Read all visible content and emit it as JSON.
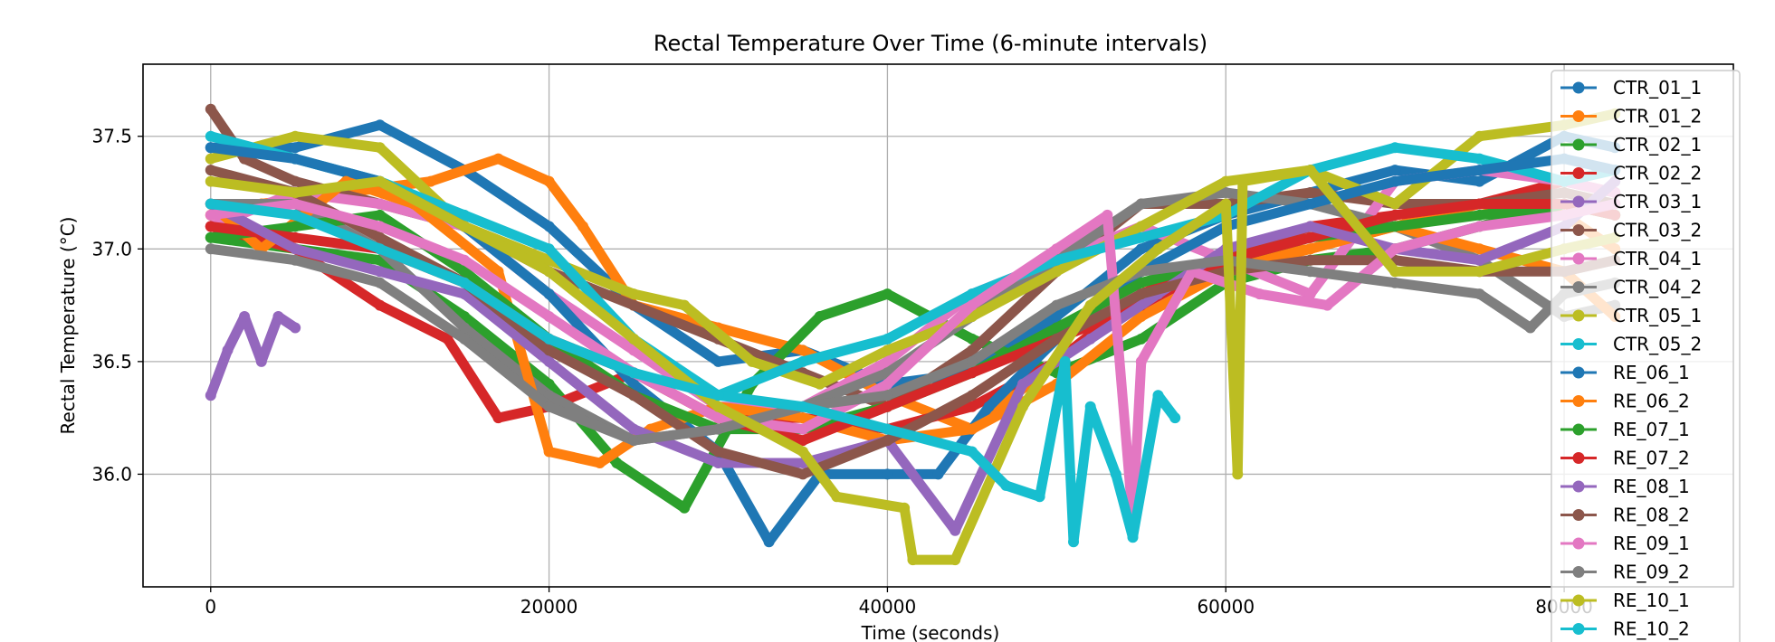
{
  "chart_data": {
    "type": "line",
    "title": "Rectal Temperature Over Time (6-minute intervals)",
    "xlabel": "Time (seconds)",
    "ylabel": "Rectal Temperature (°C)",
    "xlim": [
      -4000,
      90000
    ],
    "ylim": [
      35.5,
      37.82
    ],
    "x_ticks": [
      0,
      20000,
      40000,
      60000,
      80000
    ],
    "y_ticks": [
      36.0,
      36.5,
      37.0,
      37.5
    ],
    "y_tick_labels": [
      "36.0",
      "36.5",
      "37.0",
      "37.5"
    ],
    "grid": true,
    "legend_position": "upper-right",
    "series": [
      {
        "name": "CTR_01_1",
        "color": "#1f77b4",
        "x": [
          0,
          5000,
          10000,
          15000,
          20000,
          25000,
          30000,
          35000,
          40000,
          45000,
          50000,
          55000,
          60000,
          65000,
          70000,
          75000,
          80000,
          83000
        ],
        "y": [
          37.45,
          37.45,
          37.55,
          37.35,
          37.1,
          36.75,
          36.5,
          36.55,
          36.4,
          36.45,
          36.7,
          37.0,
          37.15,
          37.25,
          37.35,
          37.3,
          37.5,
          37.45
        ]
      },
      {
        "name": "CTR_01_2",
        "color": "#ff7f0e",
        "x": [
          0,
          3000,
          8000,
          13000,
          17000,
          20000,
          22000,
          25000,
          30000,
          35000,
          40000,
          45000,
          50000,
          55000,
          60000,
          65000,
          70000,
          75000,
          80000,
          83000
        ],
        "y": [
          37.15,
          37.2,
          37.25,
          37.3,
          37.4,
          37.3,
          37.1,
          36.75,
          36.65,
          36.55,
          36.35,
          36.2,
          36.5,
          36.8,
          36.95,
          37.0,
          37.1,
          37.2,
          37.15,
          37.0
        ]
      },
      {
        "name": "CTR_02_1",
        "color": "#2ca02c",
        "x": [
          0,
          5000,
          10000,
          15000,
          20000,
          24000,
          28000,
          32000,
          36000,
          40000,
          45000,
          50000,
          55000,
          60000,
          65000,
          70000,
          75000,
          80000,
          83000
        ],
        "y": [
          37.05,
          37.0,
          36.95,
          36.7,
          36.4,
          36.05,
          35.85,
          36.4,
          36.7,
          36.8,
          36.6,
          36.45,
          36.6,
          36.85,
          36.95,
          37.0,
          37.1,
          37.2,
          37.15
        ]
      },
      {
        "name": "CTR_02_2",
        "color": "#d62728",
        "x": [
          0,
          5000,
          10000,
          14000,
          17000,
          20000,
          25000,
          30000,
          35000,
          40000,
          45000,
          50000,
          55000,
          60000,
          65000,
          70000,
          75000,
          80000,
          83000
        ],
        "y": [
          37.1,
          37.0,
          36.75,
          36.6,
          36.25,
          36.3,
          36.45,
          36.25,
          36.25,
          36.2,
          36.3,
          36.5,
          36.8,
          36.95,
          37.1,
          37.15,
          37.2,
          37.3,
          37.25
        ]
      },
      {
        "name": "CTR_03_1",
        "color": "#9467bd",
        "x": [
          0,
          1000,
          2000,
          3000,
          4000,
          5000
        ],
        "y": [
          36.35,
          36.55,
          36.7,
          36.5,
          36.7,
          36.65
        ]
      },
      {
        "name": "CTR_03_2",
        "color": "#8c564b",
        "x": [
          0,
          2000,
          5000,
          10000,
          15000,
          20000,
          25000,
          30000,
          35000,
          40000,
          45000,
          50000,
          55000,
          60000,
          65000,
          70000,
          75000,
          80000,
          83000
        ],
        "y": [
          37.62,
          37.4,
          37.3,
          37.2,
          37.1,
          36.9,
          36.75,
          36.6,
          36.45,
          36.3,
          36.55,
          36.9,
          37.2,
          37.2,
          37.25,
          37.2,
          37.2,
          37.25,
          37.2
        ]
      },
      {
        "name": "CTR_04_1",
        "color": "#e377c2",
        "x": [
          0,
          5000,
          10000,
          15000,
          20000,
          25000,
          30000,
          35000,
          40000,
          45000,
          50000,
          55000,
          60000,
          65000,
          70000,
          75000,
          80000,
          83000
        ],
        "y": [
          37.1,
          37.25,
          37.2,
          37.1,
          36.8,
          36.55,
          36.3,
          36.3,
          36.5,
          36.8,
          36.95,
          37.1,
          36.95,
          36.8,
          37.3,
          37.35,
          37.3,
          37.25
        ]
      },
      {
        "name": "CTR_04_2",
        "color": "#7f7f7f",
        "x": [
          0,
          5000,
          10000,
          15000,
          20000,
          25000,
          30000,
          35000,
          40000,
          45000,
          50000,
          55000,
          60000,
          65000,
          70000,
          75000,
          80000,
          83000
        ],
        "y": [
          37.2,
          37.2,
          37.0,
          36.65,
          36.35,
          36.15,
          36.2,
          36.3,
          36.45,
          36.7,
          36.95,
          37.2,
          37.25,
          37.2,
          37.1,
          36.95,
          36.7,
          36.75
        ]
      },
      {
        "name": "CTR_05_1",
        "color": "#bcbd22",
        "x": [
          0,
          5000,
          10000,
          15000,
          20000,
          25000,
          28000,
          32000,
          36000,
          40000,
          45000,
          50000,
          55000,
          60000,
          65000,
          70000,
          75000,
          80000,
          83000
        ],
        "y": [
          37.4,
          37.5,
          37.45,
          37.1,
          36.95,
          36.8,
          36.75,
          36.5,
          36.4,
          36.55,
          36.7,
          36.9,
          37.1,
          37.3,
          37.35,
          37.2,
          37.5,
          37.55,
          37.6
        ]
      },
      {
        "name": "CTR_05_2",
        "color": "#17becf",
        "x": [
          0,
          5000,
          10000,
          15000,
          20000,
          25000,
          30000,
          35000,
          40000,
          45000,
          50000,
          55000,
          60000,
          65000,
          70000,
          75000,
          80000,
          83000
        ],
        "y": [
          37.5,
          37.4,
          37.3,
          37.15,
          37.0,
          36.6,
          36.35,
          36.5,
          36.6,
          36.8,
          36.95,
          37.05,
          37.15,
          37.35,
          37.45,
          37.4,
          37.3,
          37.35
        ]
      },
      {
        "name": "RE_06_1",
        "color": "#1f77b4",
        "x": [
          0,
          5000,
          10000,
          15000,
          20000,
          25000,
          30000,
          33000,
          36000,
          40000,
          43000,
          46000,
          50000,
          55000,
          60000,
          65000,
          70000,
          75000,
          80000,
          83000
        ],
        "y": [
          37.45,
          37.4,
          37.3,
          37.1,
          36.8,
          36.4,
          36.1,
          35.7,
          36.0,
          36.0,
          36.0,
          36.3,
          36.6,
          36.9,
          37.1,
          37.2,
          37.3,
          37.35,
          37.4,
          37.35
        ]
      },
      {
        "name": "RE_06_2",
        "color": "#ff7f0e",
        "x": [
          0,
          3000,
          8000,
          12000,
          17000,
          20000,
          23000,
          26000,
          30000,
          35000,
          40000,
          45000,
          50000,
          55000,
          60000,
          65000,
          70000,
          75000,
          80000,
          83000
        ],
        "y": [
          37.2,
          37.0,
          37.3,
          37.2,
          36.9,
          36.1,
          36.05,
          36.2,
          36.3,
          36.25,
          36.15,
          36.2,
          36.4,
          36.7,
          36.9,
          37.0,
          37.1,
          37.0,
          36.9,
          36.7
        ]
      },
      {
        "name": "RE_07_1",
        "color": "#2ca02c",
        "x": [
          0,
          5000,
          10000,
          15000,
          20000,
          25000,
          30000,
          35000,
          40000,
          45000,
          50000,
          55000,
          60000,
          65000,
          70000,
          75000,
          80000,
          83000
        ],
        "y": [
          37.05,
          37.1,
          37.15,
          36.9,
          36.6,
          36.35,
          36.2,
          36.2,
          36.3,
          36.45,
          36.65,
          36.85,
          36.95,
          37.05,
          37.1,
          37.15,
          37.2,
          37.15
        ]
      },
      {
        "name": "RE_07_2",
        "color": "#d62728",
        "x": [
          0,
          5000,
          10000,
          15000,
          20000,
          25000,
          30000,
          35000,
          40000,
          45000,
          50000,
          55000,
          60000,
          65000,
          70000,
          75000,
          80000,
          83000
        ],
        "y": [
          37.1,
          37.05,
          37.0,
          36.85,
          36.6,
          36.45,
          36.25,
          36.15,
          36.3,
          36.45,
          36.6,
          36.75,
          36.95,
          37.05,
          37.15,
          37.2,
          37.2,
          37.15
        ]
      },
      {
        "name": "RE_08_1",
        "color": "#9467bd",
        "x": [
          0,
          5000,
          10000,
          15000,
          20000,
          25000,
          30000,
          35000,
          40000,
          44000,
          48000,
          52000,
          56000,
          60000,
          65000,
          70000,
          75000,
          80000,
          83000
        ],
        "y": [
          37.2,
          37.0,
          36.9,
          36.8,
          36.5,
          36.2,
          36.05,
          36.05,
          36.15,
          35.75,
          36.4,
          36.6,
          36.8,
          37.0,
          37.1,
          37.0,
          36.95,
          37.1,
          37.3
        ]
      },
      {
        "name": "RE_08_2",
        "color": "#8c564b",
        "x": [
          0,
          5000,
          10000,
          15000,
          20000,
          25000,
          30000,
          35000,
          40000,
          45000,
          50000,
          55000,
          60000,
          65000,
          70000,
          75000,
          80000,
          83000
        ],
        "y": [
          37.35,
          37.25,
          37.05,
          36.85,
          36.55,
          36.35,
          36.1,
          36.0,
          36.15,
          36.35,
          36.6,
          36.8,
          36.9,
          36.95,
          36.95,
          36.9,
          36.9,
          36.95
        ]
      },
      {
        "name": "RE_09_1",
        "color": "#e377c2",
        "x": [
          0,
          5000,
          10000,
          15000,
          20000,
          25000,
          30000,
          35000,
          40000,
          45000,
          50000,
          53000,
          54500,
          55000,
          58000,
          62000,
          66000,
          70000,
          75000,
          80000,
          83000
        ],
        "y": [
          37.15,
          37.2,
          37.1,
          36.95,
          36.7,
          36.45,
          36.25,
          36.2,
          36.4,
          36.75,
          37.0,
          37.15,
          35.8,
          36.5,
          36.9,
          36.8,
          36.75,
          37.0,
          37.1,
          37.15,
          37.2
        ]
      },
      {
        "name": "RE_09_2",
        "color": "#7f7f7f",
        "x": [
          0,
          5000,
          10000,
          15000,
          20000,
          25000,
          30000,
          35000,
          40000,
          45000,
          50000,
          55000,
          60000,
          65000,
          70000,
          75000,
          78000,
          80000,
          83000
        ],
        "y": [
          37.0,
          36.95,
          36.85,
          36.6,
          36.3,
          36.15,
          36.2,
          36.3,
          36.35,
          36.5,
          36.75,
          36.9,
          36.95,
          36.9,
          36.85,
          36.8,
          36.65,
          36.8,
          36.85
        ]
      },
      {
        "name": "RE_10_1",
        "color": "#bcbd22",
        "x": [
          0,
          5000,
          10000,
          15000,
          20000,
          25000,
          30000,
          35000,
          37000,
          41000,
          41500,
          44000,
          48000,
          52000,
          56000,
          60000,
          60700,
          61000,
          65000,
          70000,
          75000,
          80000,
          83000
        ],
        "y": [
          37.3,
          37.25,
          37.3,
          37.1,
          36.9,
          36.6,
          36.3,
          36.1,
          35.9,
          35.85,
          35.62,
          35.62,
          36.3,
          36.75,
          37.0,
          37.2,
          36.0,
          37.3,
          37.35,
          36.9,
          36.9,
          37.0,
          37.05
        ]
      },
      {
        "name": "RE_10_2",
        "color": "#17becf",
        "x": [
          0,
          5000,
          10000,
          15000,
          20000,
          25000,
          30000,
          35000,
          40000,
          45000,
          47000,
          49000,
          50500,
          51000,
          52000,
          53500,
          54500,
          56000,
          57000
        ],
        "y": [
          37.2,
          37.15,
          37.0,
          36.85,
          36.6,
          36.45,
          36.35,
          36.3,
          36.2,
          36.1,
          35.95,
          35.9,
          36.5,
          35.7,
          36.3,
          36.0,
          35.72,
          36.35,
          36.25
        ]
      }
    ]
  }
}
